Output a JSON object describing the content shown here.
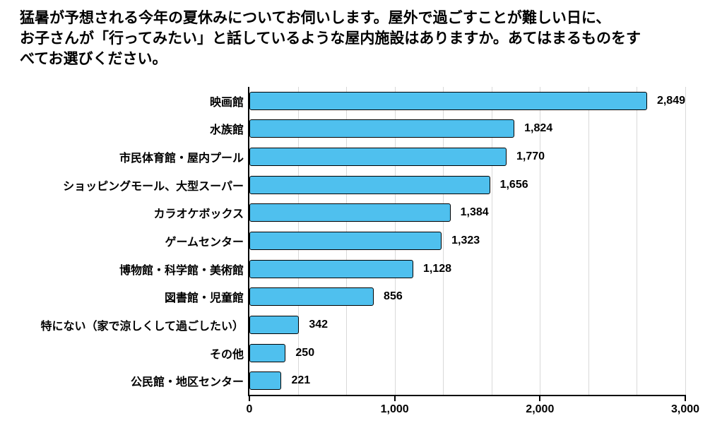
{
  "title": "猛暑が予想される今年の夏休みについてお伺いします。屋外で過ごすことが難しい日に、\nお子さんが「行ってみたい」と話しているような屋内施設はありますか。あてはまるものをす\nべてお選びください。",
  "chart_data": {
    "type": "bar",
    "orientation": "horizontal",
    "title": "",
    "xlabel": "",
    "ylabel": "",
    "xlim": [
      0,
      3000
    ],
    "grid": true,
    "grid_subdivisions": 9,
    "categories": [
      "映画館",
      "水族館",
      "市民体育館・屋内プール",
      "ショッピングモール、大型スーパー",
      "カラオケボックス",
      "ゲームセンター",
      "博物館・科学館・美術館",
      "図書館・児童館",
      "特にない（家で涼しくして過ごしたい）",
      "その他",
      "公民館・地区センター"
    ],
    "values": [
      2849,
      1824,
      1770,
      1656,
      1384,
      1323,
      1128,
      856,
      342,
      250,
      221
    ],
    "value_labels": [
      "2,849",
      "1,824",
      "1,770",
      "1,656",
      "1,384",
      "1,323",
      "1,128",
      "856",
      "342",
      "250",
      "221"
    ],
    "x_ticks": [
      "0",
      "1,000",
      "2,000",
      "3,000"
    ],
    "colors": {
      "bar_fill": "#4FC0EE",
      "bar_border": "#000000",
      "gridline": "#D9D9D9",
      "axis": "#000000",
      "text": "#000000",
      "background": "#FFFFFF"
    }
  }
}
